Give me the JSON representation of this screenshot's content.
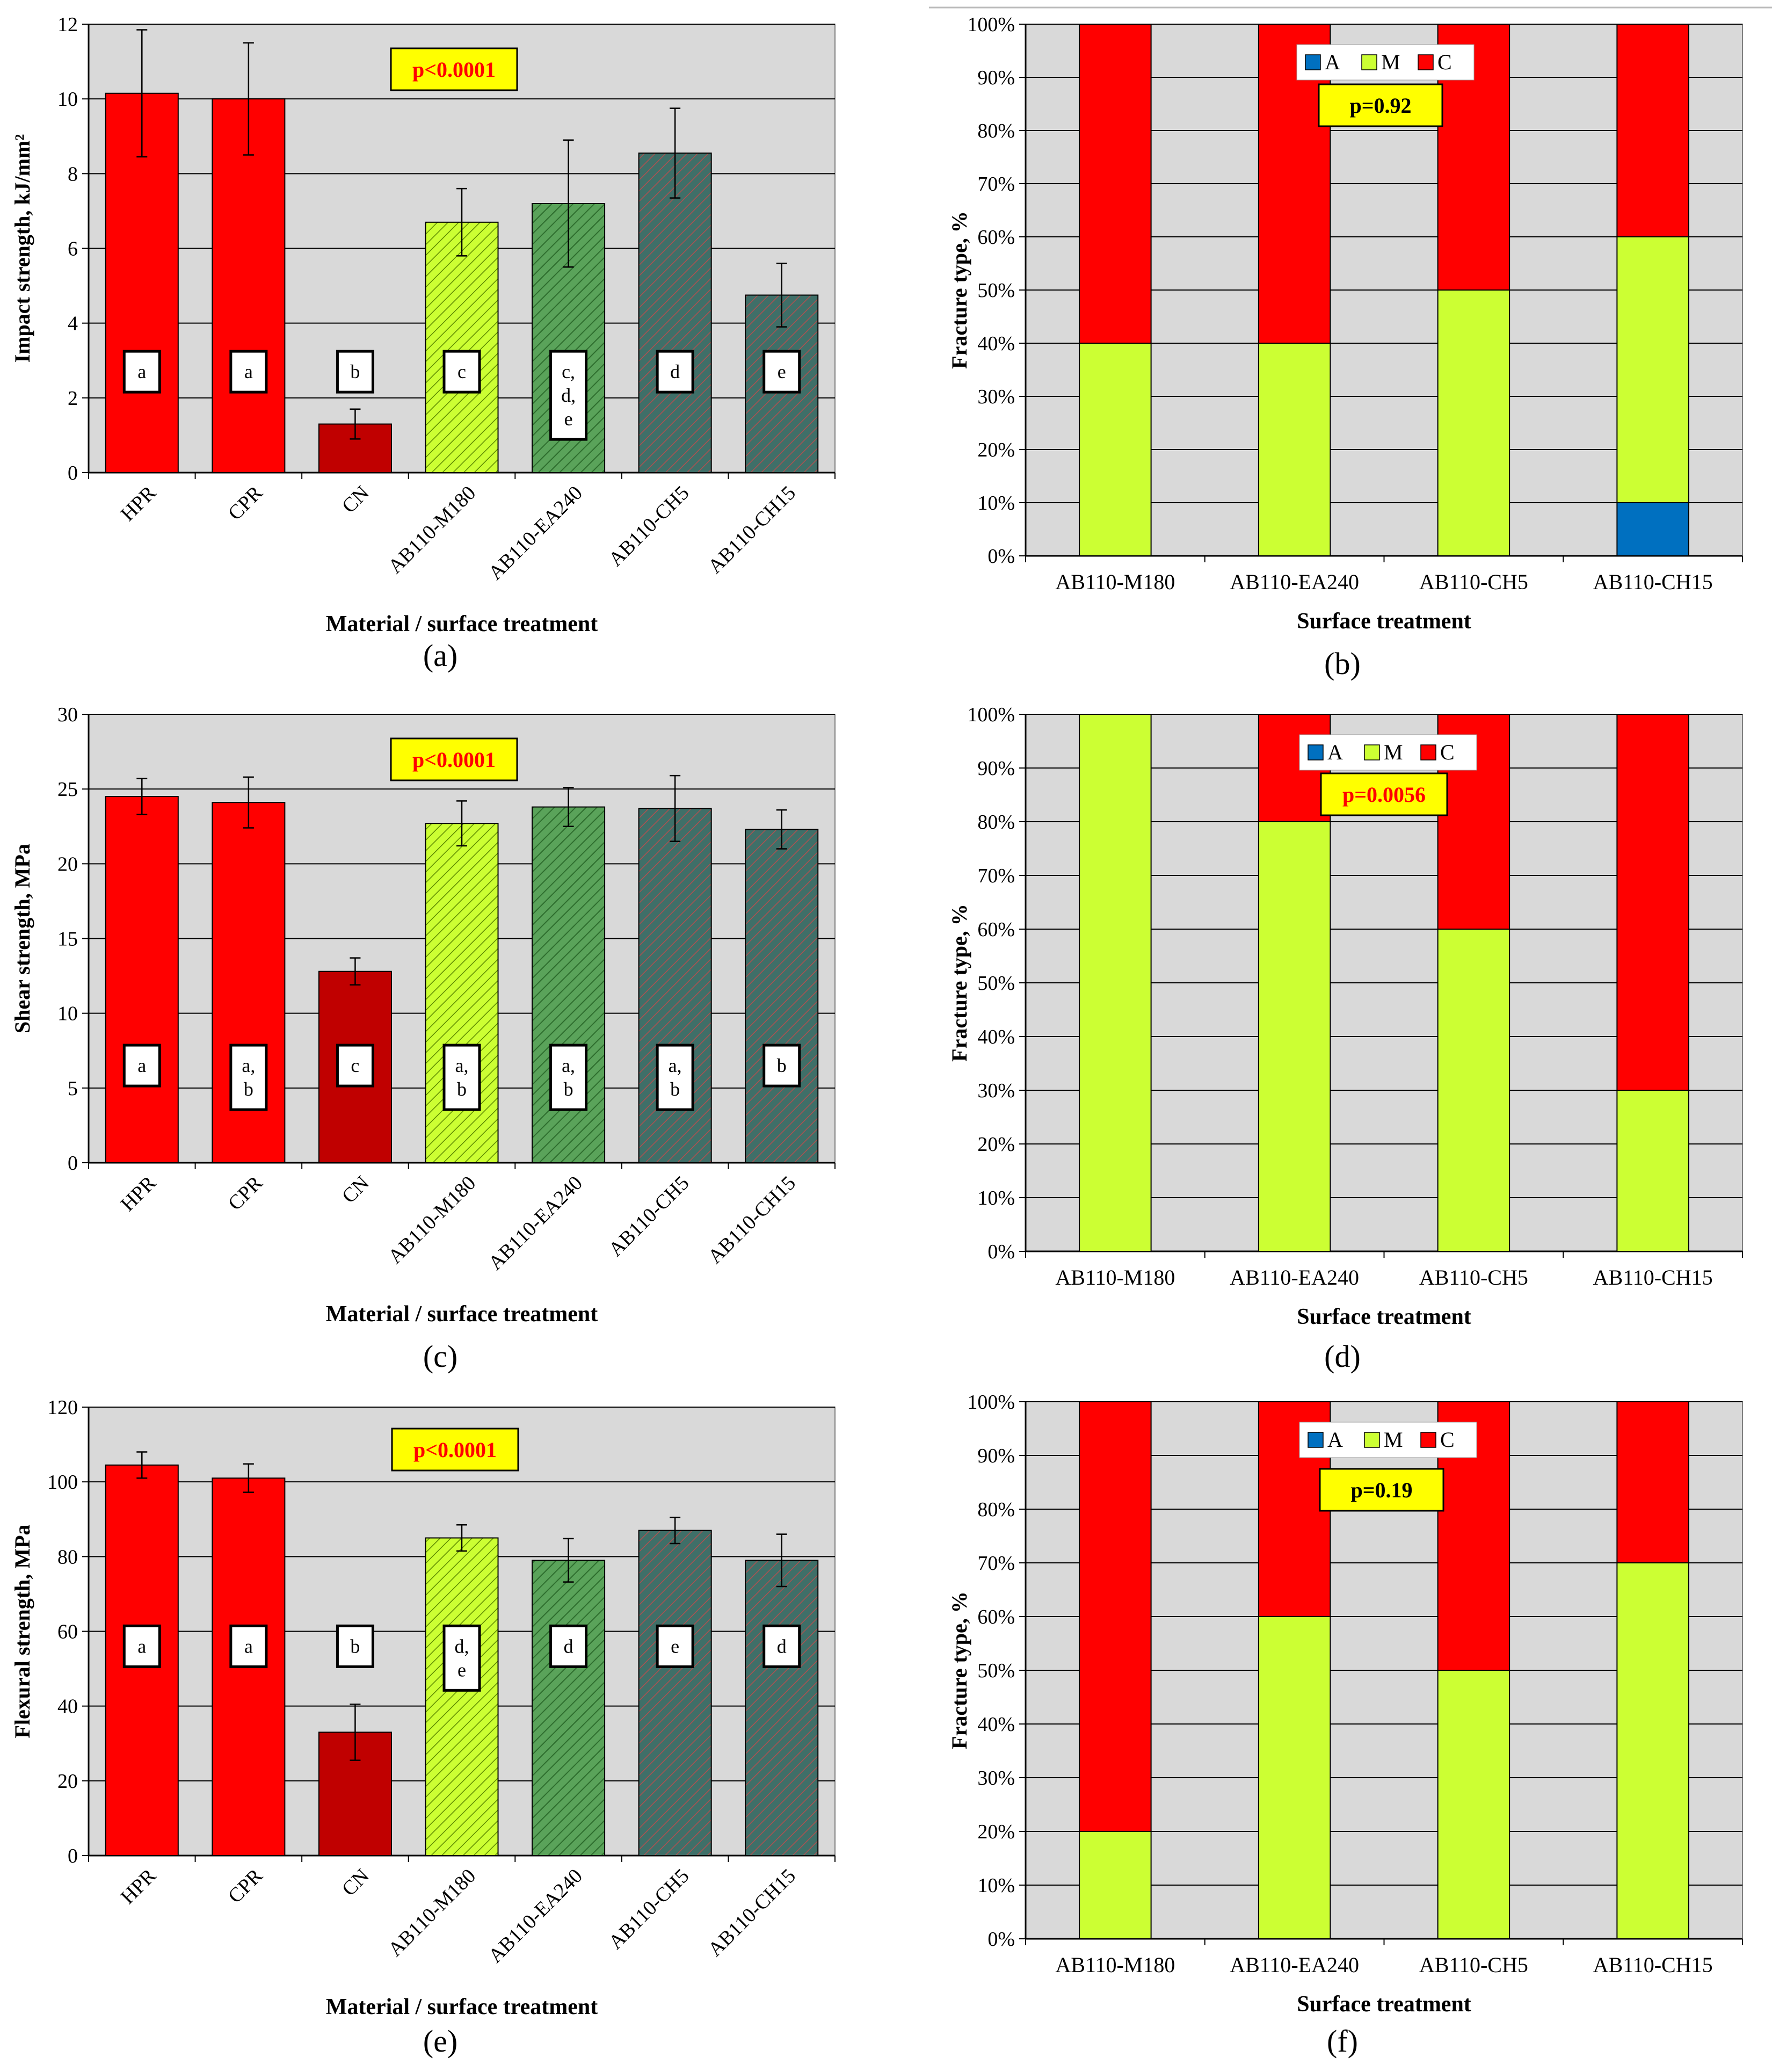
{
  "figure": {
    "panel_labels": [
      "(a)",
      "(b)",
      "(c)",
      "(d)",
      "(e)",
      "(f)"
    ]
  },
  "colors": {
    "plot_bg": "#d9d9d9",
    "gridline": "#000000",
    "red": "#ff0000",
    "dark_red": "#c00000",
    "yellow_green": "#ccff33",
    "green": "#5a9e5a",
    "teal": "#3a6b64",
    "blue": "#0070c0",
    "pvalue_bg": "#ffff00",
    "pvalue_red_text": "#ff0000",
    "pvalue_black_text": "#000000"
  },
  "chart_data": [
    {
      "id": "a",
      "type": "bar",
      "title": "",
      "xlabel": "Material / surface treatment",
      "ylabel": "Impact strength, kJ/mm²",
      "ylim": [
        0,
        12
      ],
      "yticks": [
        0,
        2,
        4,
        6,
        8,
        10,
        12
      ],
      "ytick_format": "plain",
      "categories": [
        "HPR",
        "CPR",
        "CN",
        "AB110-M180",
        "AB110-EA240",
        "AB110-CH5",
        "AB110-CH15"
      ],
      "values": [
        10.15,
        10.0,
        1.3,
        6.7,
        7.2,
        8.55,
        4.75
      ],
      "errors": [
        1.7,
        1.5,
        0.4,
        0.9,
        1.7,
        1.2,
        0.85
      ],
      "bar_fills": [
        "red",
        "red",
        "dark_red",
        "yellow_green",
        "green",
        "teal",
        "teal"
      ],
      "group_letters": [
        [
          "a"
        ],
        [
          "a"
        ],
        [
          "b"
        ],
        [
          "c"
        ],
        [
          "c,",
          "d,",
          "e"
        ],
        [
          "d"
        ],
        [
          "e"
        ]
      ],
      "letter_level": 2.7,
      "p_value": "p<0.0001",
      "p_value_color": "pvalue_red_text",
      "grid": true
    },
    {
      "id": "b",
      "type": "bar",
      "stacked": true,
      "title": "",
      "xlabel": "Surface treatment",
      "ylabel": "Fracture type, %",
      "ylim": [
        0,
        100
      ],
      "yticks": [
        0,
        10,
        20,
        30,
        40,
        50,
        60,
        70,
        80,
        90,
        100
      ],
      "ytick_format": "percent",
      "categories": [
        "AB110-M180",
        "AB110-EA240",
        "AB110-CH5",
        "AB110-CH15"
      ],
      "series": [
        {
          "name": "A",
          "color": "blue",
          "values": [
            0,
            0,
            0,
            10
          ]
        },
        {
          "name": "M",
          "color": "yellow_green",
          "values": [
            40,
            40,
            50,
            50
          ]
        },
        {
          "name": "C",
          "color": "red",
          "values": [
            60,
            60,
            50,
            40
          ]
        }
      ],
      "legend": [
        "A",
        "M",
        "C"
      ],
      "p_value": "p=0.92",
      "p_value_color": "pvalue_black_text",
      "grid": true
    },
    {
      "id": "c",
      "type": "bar",
      "title": "",
      "xlabel": "Material / surface treatment",
      "ylabel": "Shear strength, MPa",
      "ylim": [
        0,
        30
      ],
      "yticks": [
        0,
        5,
        10,
        15,
        20,
        25,
        30
      ],
      "ytick_format": "plain",
      "categories": [
        "HPR",
        "CPR",
        "CN",
        "AB110-M180",
        "AB110-EA240",
        "AB110-CH5",
        "AB110-CH15"
      ],
      "values": [
        24.5,
        24.1,
        12.8,
        22.7,
        23.8,
        23.7,
        22.3
      ],
      "errors": [
        1.2,
        1.7,
        0.9,
        1.5,
        1.3,
        2.2,
        1.3
      ],
      "bar_fills": [
        "red",
        "red",
        "dark_red",
        "yellow_green",
        "green",
        "teal",
        "teal"
      ],
      "group_letters": [
        [
          "a"
        ],
        [
          "a,",
          "b"
        ],
        [
          "c"
        ],
        [
          "a,",
          "b"
        ],
        [
          "a,",
          "b"
        ],
        [
          "a,",
          "b"
        ],
        [
          "b"
        ]
      ],
      "letter_level": 6.5,
      "p_value": "p<0.0001",
      "p_value_color": "pvalue_red_text",
      "grid": true
    },
    {
      "id": "d",
      "type": "bar",
      "stacked": true,
      "title": "",
      "xlabel": "Surface treatment",
      "ylabel": "Fracture type, %",
      "ylim": [
        0,
        100
      ],
      "yticks": [
        0,
        10,
        20,
        30,
        40,
        50,
        60,
        70,
        80,
        90,
        100
      ],
      "ytick_format": "percent",
      "categories": [
        "AB110-M180",
        "AB110-EA240",
        "AB110-CH5",
        "AB110-CH15"
      ],
      "series": [
        {
          "name": "A",
          "color": "blue",
          "values": [
            0,
            0,
            0,
            0
          ]
        },
        {
          "name": "M",
          "color": "yellow_green",
          "values": [
            100,
            80,
            60,
            30
          ]
        },
        {
          "name": "C",
          "color": "red",
          "values": [
            0,
            20,
            40,
            70
          ]
        }
      ],
      "legend": [
        "A",
        "M",
        "C"
      ],
      "p_value": "p=0.0056",
      "p_value_color": "pvalue_red_text",
      "grid": true
    },
    {
      "id": "e",
      "type": "bar",
      "title": "",
      "xlabel": "Material / surface treatment",
      "ylabel": "Flexural strength, MPa",
      "ylim": [
        0,
        120
      ],
      "yticks": [
        0,
        20,
        40,
        60,
        80,
        100,
        120
      ],
      "ytick_format": "plain",
      "categories": [
        "HPR",
        "CPR",
        "CN",
        "AB110-M180",
        "AB110-EA240",
        "AB110-CH5",
        "AB110-CH15"
      ],
      "values": [
        104.5,
        101,
        33,
        85,
        79,
        87,
        79
      ],
      "errors": [
        3.5,
        3.8,
        7.5,
        3.5,
        5.8,
        3.5,
        7.0
      ],
      "bar_fills": [
        "red",
        "red",
        "dark_red",
        "yellow_green",
        "green",
        "teal",
        "teal"
      ],
      "group_letters": [
        [
          "a"
        ],
        [
          "a"
        ],
        [
          "b"
        ],
        [
          "d,",
          "e"
        ],
        [
          "d"
        ],
        [
          "e"
        ],
        [
          "d"
        ]
      ],
      "letter_level": 56,
      "p_value": "p<0.0001",
      "p_value_color": "pvalue_red_text",
      "grid": true
    },
    {
      "id": "f",
      "type": "bar",
      "stacked": true,
      "title": "",
      "xlabel": "Surface treatment",
      "ylabel": "Fracture type, %",
      "ylim": [
        0,
        100
      ],
      "yticks": [
        0,
        10,
        20,
        30,
        40,
        50,
        60,
        70,
        80,
        90,
        100
      ],
      "ytick_format": "percent",
      "categories": [
        "AB110-M180",
        "AB110-EA240",
        "AB110-CH5",
        "AB110-CH15"
      ],
      "series": [
        {
          "name": "A",
          "color": "blue",
          "values": [
            0,
            0,
            0,
            0
          ]
        },
        {
          "name": "M",
          "color": "yellow_green",
          "values": [
            20,
            60,
            50,
            70
          ]
        },
        {
          "name": "C",
          "color": "red",
          "values": [
            80,
            40,
            50,
            30
          ]
        }
      ],
      "legend": [
        "A",
        "M",
        "C"
      ],
      "p_value": "p=0.19",
      "p_value_color": "pvalue_black_text",
      "grid": true
    }
  ]
}
